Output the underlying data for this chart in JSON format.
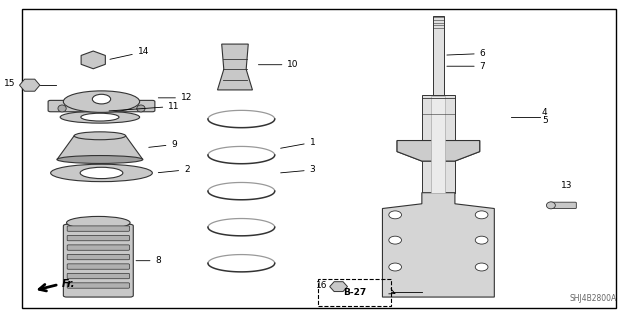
{
  "title": "",
  "bg_color": "#ffffff",
  "border_color": "#000000",
  "line_color": "#000000",
  "part_color": "#c8c8c8",
  "part_outline": "#333333",
  "fig_width": 6.4,
  "fig_height": 3.19,
  "dpi": 100,
  "watermark": "SHJ4B2800A",
  "ref_label": "B-27",
  "direction_label": "Fr."
}
